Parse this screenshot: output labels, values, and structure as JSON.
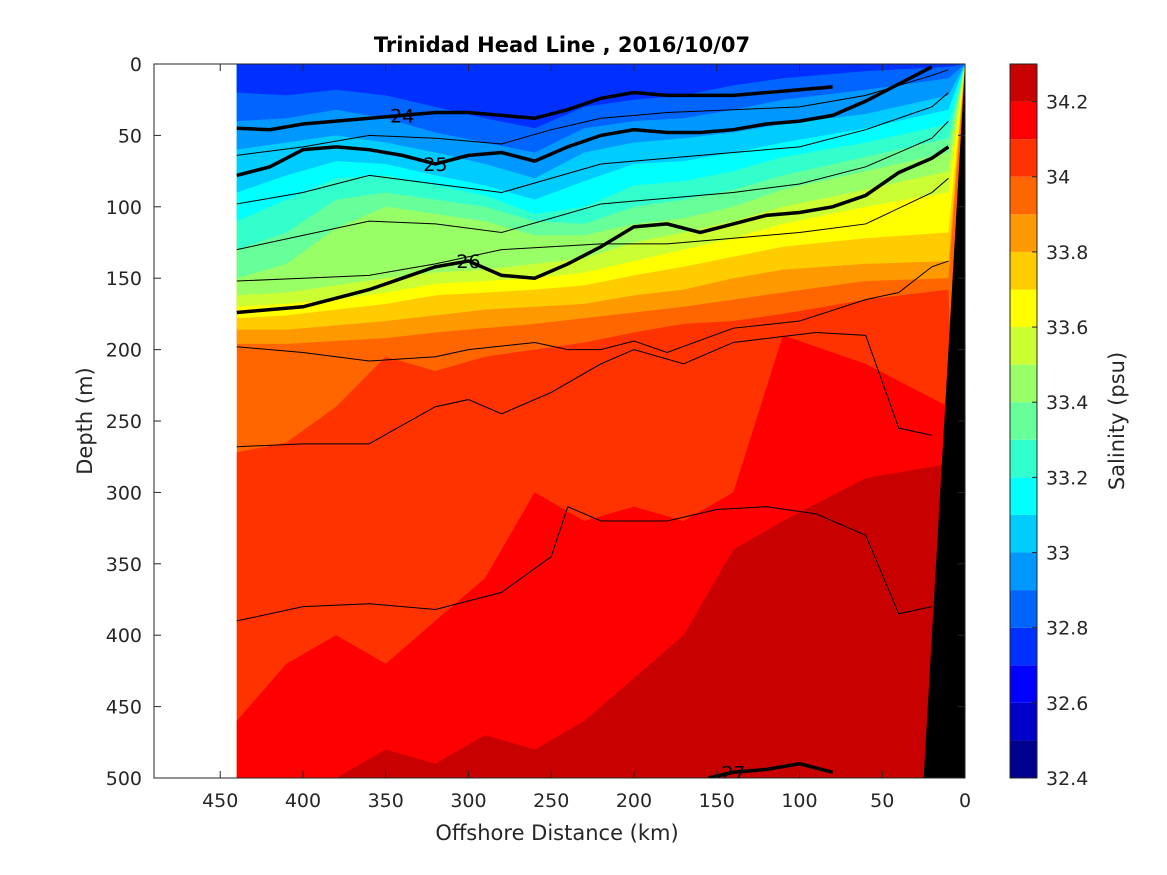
{
  "chart_data": {
    "type": "heatmap",
    "title": "Trinidad Head Line , 2016/10/07",
    "xlabel": "Offshore Distance (km)",
    "ylabel": "Depth (m)",
    "xlim": [
      490,
      0
    ],
    "ylim": [
      500,
      0
    ],
    "x_ticks": [
      "450",
      "400",
      "350",
      "300",
      "250",
      "200",
      "150",
      "100",
      "50",
      "0"
    ],
    "y_ticks": [
      "0",
      "50",
      "100",
      "150",
      "200",
      "250",
      "300",
      "350",
      "400",
      "450",
      "500"
    ],
    "colorbar": {
      "label": "Salinity (psu)",
      "range": [
        32.4,
        34.3
      ],
      "ticks": [
        "32.4",
        "32.6",
        "32.8",
        "33",
        "33.2",
        "33.4",
        "33.6",
        "33.8",
        "34",
        "34.2"
      ],
      "levels": [
        32.4,
        32.5,
        32.6,
        32.7,
        32.8,
        32.9,
        33.0,
        33.1,
        33.2,
        33.3,
        33.4,
        33.5,
        33.6,
        33.7,
        33.8,
        33.9,
        34.0,
        34.1,
        34.2,
        34.3
      ],
      "colors": [
        "#00008f",
        "#0000c8",
        "#0000ff",
        "#0030ff",
        "#0064ff",
        "#0098ff",
        "#00ccff",
        "#00ffff",
        "#33ffcc",
        "#66ff99",
        "#99ff66",
        "#ccff33",
        "#ffff00",
        "#ffcc00",
        "#ff9900",
        "#ff6600",
        "#ff3300",
        "#ff0000",
        "#c80000"
      ]
    },
    "data_extent_km": [
      440,
      0
    ],
    "salinity_bands": [
      {
        "level": 33.9,
        "depth_top_m": [
          196,
          196,
          194,
          192,
          188,
          185,
          182,
          178,
          174,
          170,
          165,
          160,
          152,
          150
        ]
      },
      {
        "level": 33.8,
        "depth_top_m": [
          186,
          186,
          183,
          180,
          176,
          172,
          170,
          168,
          162,
          158,
          150,
          144,
          140,
          138
        ]
      },
      {
        "level": 33.7,
        "depth_top_m": [
          178,
          176,
          172,
          168,
          162,
          160,
          158,
          155,
          148,
          142,
          135,
          128,
          122,
          118
        ]
      },
      {
        "level": 33.6,
        "depth_top_m": [
          170,
          168,
          165,
          160,
          154,
          152,
          150,
          146,
          138,
          130,
          122,
          112,
          100,
          90
        ]
      },
      {
        "level": 33.5,
        "depth_top_m": [
          162,
          160,
          155,
          150,
          146,
          144,
          140,
          136,
          125,
          118,
          110,
          100,
          88,
          75
        ]
      },
      {
        "level": 33.4,
        "depth_top_m": [
          150,
          140,
          115,
          100,
          105,
          110,
          120,
          120,
          112,
          108,
          100,
          88,
          75,
          62
        ]
      },
      {
        "level": 33.3,
        "depth_top_m": [
          130,
          118,
          95,
          90,
          95,
          100,
          110,
          112,
          100,
          95,
          88,
          78,
          65,
          52
        ]
      },
      {
        "level": 33.2,
        "depth_top_m": [
          110,
          95,
          80,
          78,
          85,
          92,
          105,
          100,
          85,
          82,
          75,
          65,
          55,
          42
        ]
      },
      {
        "level": 33.1,
        "depth_top_m": [
          90,
          78,
          68,
          70,
          78,
          85,
          95,
          82,
          70,
          68,
          62,
          55,
          45,
          32
        ]
      },
      {
        "level": 33.0,
        "depth_top_m": [
          60,
          55,
          50,
          55,
          62,
          70,
          80,
          62,
          55,
          52,
          48,
          42,
          35,
          22
        ]
      },
      {
        "level": 32.9,
        "depth_top_m": [
          40,
          38,
          32,
          38,
          48,
          55,
          62,
          45,
          40,
          38,
          32,
          25,
          18,
          10
        ]
      },
      {
        "level": 32.8,
        "depth_top_m": [
          20,
          22,
          18,
          22,
          30,
          38,
          45,
          30,
          25,
          22,
          15,
          10,
          5,
          2
        ]
      }
    ],
    "deep_bands": [
      {
        "level": 34.0,
        "depth_top_m": [
          272,
          265,
          240,
          205,
          215,
          205,
          200,
          195,
          188,
          182,
          180,
          175,
          165,
          158
        ]
      },
      {
        "level": 34.1,
        "depth_top_m": [
          460,
          420,
          400,
          420,
          390,
          360,
          300,
          320,
          310,
          320,
          300,
          190,
          210,
          240
        ]
      },
      {
        "level": 34.2,
        "depth_top_m": [
          500,
          500,
          500,
          480,
          490,
          470,
          480,
          460,
          430,
          400,
          340,
          320,
          290,
          280
        ]
      }
    ],
    "band_x_km": [
      440,
      410,
      380,
      350,
      320,
      290,
      260,
      230,
      200,
      170,
      140,
      110,
      60,
      10
    ],
    "density_contours": [
      {
        "label": "24",
        "x_km": [
          440,
          420,
          400,
          380,
          360,
          340,
          320,
          300,
          280,
          260,
          240,
          220,
          200,
          180,
          160,
          140,
          120,
          100,
          80
        ],
        "depth_m": [
          45,
          46,
          42,
          40,
          38,
          36,
          34,
          34,
          36,
          38,
          32,
          24,
          20,
          22,
          22,
          22,
          20,
          18,
          16
        ]
      },
      {
        "label": "25",
        "x_km": [
          440,
          420,
          400,
          380,
          360,
          340,
          320,
          300,
          280,
          260,
          240,
          220,
          200,
          180,
          160,
          140,
          120,
          100,
          80,
          60,
          40,
          20
        ],
        "depth_m": [
          78,
          72,
          60,
          58,
          60,
          64,
          70,
          64,
          62,
          68,
          58,
          50,
          46,
          48,
          48,
          46,
          42,
          40,
          36,
          26,
          14,
          2
        ]
      },
      {
        "label": "26",
        "x_km": [
          440,
          400,
          380,
          360,
          340,
          320,
          300,
          280,
          260,
          240,
          220,
          200,
          180,
          160,
          140,
          120,
          100,
          80,
          60,
          40,
          20,
          10
        ],
        "depth_m": [
          174,
          170,
          164,
          158,
          150,
          142,
          138,
          148,
          150,
          140,
          128,
          114,
          112,
          118,
          112,
          106,
          104,
          100,
          92,
          76,
          66,
          58
        ]
      },
      {
        "label": "27",
        "x_km": [
          155,
          140,
          120,
          100,
          80
        ],
        "depth_m": [
          500,
          496,
          494,
          490,
          496
        ]
      }
    ],
    "thin_contours": [
      {
        "x_km": [
          440,
          400,
          360,
          320,
          280,
          250,
          220,
          180,
          140,
          100,
          60,
          20,
          10
        ],
        "depth_m": [
          64,
          58,
          50,
          52,
          56,
          46,
          38,
          34,
          32,
          30,
          22,
          8,
          4
        ]
      },
      {
        "x_km": [
          440,
          400,
          360,
          320,
          280,
          250,
          220,
          180,
          140,
          100,
          60,
          20,
          10
        ],
        "depth_m": [
          98,
          90,
          78,
          84,
          90,
          80,
          70,
          66,
          62,
          58,
          46,
          30,
          20
        ]
      },
      {
        "x_km": [
          440,
          400,
          360,
          320,
          280,
          250,
          220,
          180,
          140,
          100,
          60,
          20,
          10
        ],
        "depth_m": [
          130,
          120,
          110,
          112,
          118,
          108,
          98,
          94,
          90,
          84,
          72,
          52,
          40
        ]
      },
      {
        "x_km": [
          440,
          400,
          360,
          320,
          280,
          250,
          220,
          180,
          140,
          100,
          60,
          20,
          10
        ],
        "depth_m": [
          152,
          150,
          148,
          140,
          130,
          128,
          126,
          126,
          122,
          118,
          112,
          90,
          80
        ]
      },
      {
        "x_km": [
          440,
          400,
          360,
          320,
          300,
          260,
          240,
          220,
          200,
          180,
          140,
          100,
          60,
          40,
          20,
          10
        ],
        "depth_m": [
          198,
          202,
          208,
          205,
          200,
          195,
          200,
          200,
          194,
          202,
          185,
          180,
          165,
          160,
          142,
          138
        ]
      },
      {
        "x_km": [
          440,
          400,
          360,
          320,
          300,
          280,
          250,
          220,
          200,
          170,
          140,
          90,
          60,
          40,
          20
        ],
        "depth_m": [
          268,
          266,
          266,
          240,
          235,
          245,
          230,
          210,
          200,
          210,
          195,
          188,
          190,
          255,
          260
        ]
      },
      {
        "x_km": [
          440,
          400,
          360,
          320,
          280,
          250,
          240,
          220,
          200,
          180,
          150,
          120,
          90,
          60,
          40,
          20
        ],
        "depth_m": [
          390,
          380,
          378,
          382,
          370,
          345,
          310,
          320,
          320,
          320,
          312,
          310,
          315,
          330,
          385,
          380
        ]
      }
    ],
    "bathymetry_shelf": {
      "x_km": [
        0,
        0,
        25,
        0
      ],
      "depth_m": [
        0,
        500,
        500,
        0
      ]
    }
  }
}
